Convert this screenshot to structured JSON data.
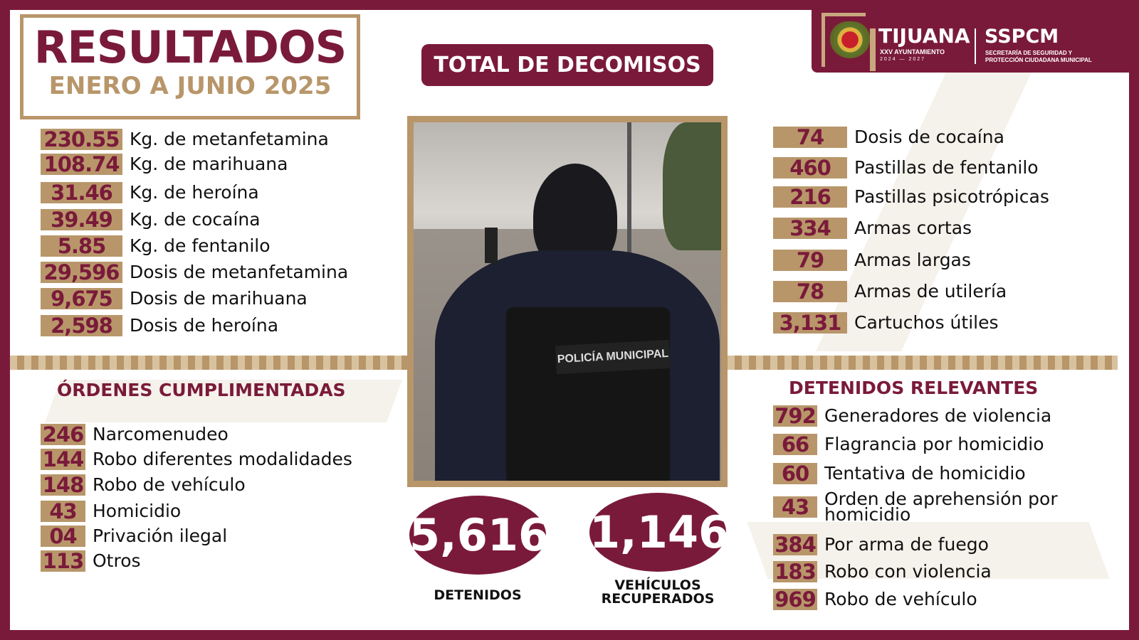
{
  "header": {
    "title": "RESULTADOS",
    "subtitle": "ENERO A JUNIO 2025",
    "section_title": "TOTAL DE DECOMISOS"
  },
  "logo": {
    "city": "TIJUANA",
    "ayuntamiento": "XXV AYUNTAMIENTO",
    "period": "2024 — 2027",
    "agency": "SSPCM",
    "agency_full_1": "SECRETARÍA DE SEGURIDAD Y",
    "agency_full_2": "PROTECCIÓN CIUDADANA MUNICIPAL"
  },
  "colors": {
    "maroon": "#7a1a3a",
    "gold": "#b8966a"
  },
  "decomisos_left": [
    {
      "value": "230.55",
      "label": "Kg. de metanfetamina"
    },
    {
      "value": "108.74",
      "label": "Kg. de marihuana"
    },
    {
      "value": "31.46",
      "label": "Kg. de heroína"
    },
    {
      "value": "39.49",
      "label": "Kg. de cocaína"
    },
    {
      "value": "5.85",
      "label": "Kg. de fentanilo"
    },
    {
      "value": "29,596",
      "label": "Dosis de metanfetamina"
    },
    {
      "value": "9,675",
      "label": "Dosis de marihuana"
    },
    {
      "value": "2,598",
      "label": "Dosis de heroína"
    }
  ],
  "decomisos_right": [
    {
      "value": "74",
      "label": "Dosis de cocaína"
    },
    {
      "value": "460",
      "label": "Pastillas de fentanilo"
    },
    {
      "value": "216",
      "label": "Pastillas psicotrópicas"
    },
    {
      "value": "334",
      "label": "Armas cortas"
    },
    {
      "value": "79",
      "label": "Armas largas"
    },
    {
      "value": "78",
      "label": "Armas de utilería"
    },
    {
      "value": "3,131",
      "label": "Cartuchos útiles"
    }
  ],
  "ordenes": {
    "title": "ÓRDENES CUMPLIMENTADAS",
    "items": [
      {
        "value": "246",
        "label": "Narcomenudeo"
      },
      {
        "value": "144",
        "label": "Robo diferentes modalidades"
      },
      {
        "value": "148",
        "label": "Robo de vehículo"
      },
      {
        "value": "43",
        "label": "Homicidio"
      },
      {
        "value": "04",
        "label": "Privación ilegal"
      },
      {
        "value": "113",
        "label": "Otros"
      }
    ]
  },
  "detenidos_relevantes": {
    "title": "DETENIDOS RELEVANTES",
    "items": [
      {
        "value": "792",
        "label": "Generadores de violencia"
      },
      {
        "value": "66",
        "label": "Flagrancia por homicidio"
      },
      {
        "value": "60",
        "label": "Tentativa de homicidio"
      },
      {
        "value": "43",
        "label": "Orden de aprehensión por homicidio"
      },
      {
        "value": "384",
        "label": "Por arma de fuego"
      },
      {
        "value": "183",
        "label": "Robo con violencia"
      },
      {
        "value": "969",
        "label": "Robo de vehículo"
      }
    ]
  },
  "totals": {
    "detenidos_value": "5,616",
    "detenidos_label": "DETENIDOS",
    "vehiculos_value": "1,146",
    "vehiculos_label_1": "VEHÍCULOS",
    "vehiculos_label_2": "RECUPERADOS"
  },
  "photo": {
    "vest_text": "POLICÍA MUNICIPAL"
  }
}
